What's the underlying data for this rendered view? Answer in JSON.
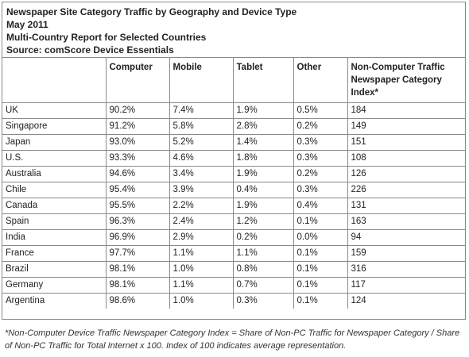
{
  "header": {
    "title": "Newspaper Site Category Traffic by Geography and Device Type",
    "date": "May 2011",
    "subtitle": "Multi-Country Report for Selected Countries",
    "source": "Source: comScore Device Essentials"
  },
  "columns": [
    "",
    "Computer",
    "Mobile",
    "Tablet",
    "Other",
    "Non-Computer Traffic Newspaper Category Index*"
  ],
  "rows": [
    [
      "UK",
      "90.2%",
      "7.4%",
      "1.9%",
      "0.5%",
      "184"
    ],
    [
      "Singapore",
      "91.2%",
      "5.8%",
      "2.8%",
      "0.2%",
      "149"
    ],
    [
      "Japan",
      "93.0%",
      "5.2%",
      "1.4%",
      "0.3%",
      "151"
    ],
    [
      "U.S.",
      "93.3%",
      "4.6%",
      "1.8%",
      "0.3%",
      "108"
    ],
    [
      "Australia",
      "94.6%",
      "3.4%",
      "1.9%",
      "0.2%",
      "126"
    ],
    [
      "Chile",
      "95.4%",
      "3.9%",
      "0.4%",
      "0.3%",
      "226"
    ],
    [
      "Canada",
      "95.5%",
      "2.2%",
      "1.9%",
      "0.4%",
      "131"
    ],
    [
      "Spain",
      "96.3%",
      "2.4%",
      "1.2%",
      "0.1%",
      "163"
    ],
    [
      "India",
      "96.9%",
      "2.9%",
      "0.2%",
      "0.0%",
      "94"
    ],
    [
      "France",
      "97.7%",
      "1.1%",
      "1.1%",
      "0.1%",
      "159"
    ],
    [
      "Brazil",
      "98.1%",
      "1.0%",
      "0.8%",
      "0.1%",
      "316"
    ],
    [
      "Germany",
      "98.1%",
      "1.1%",
      "0.7%",
      "0.1%",
      "117"
    ],
    [
      "Argentina",
      "98.6%",
      "1.0%",
      "0.3%",
      "0.1%",
      "124"
    ]
  ],
  "footnote": "*Non-Computer Device Traffic Newspaper Category Index = Share of Non-PC Traffic for Newspaper Category / Share of Non-PC Traffic for Total Internet x 100. Index of 100 indicates average representation."
}
